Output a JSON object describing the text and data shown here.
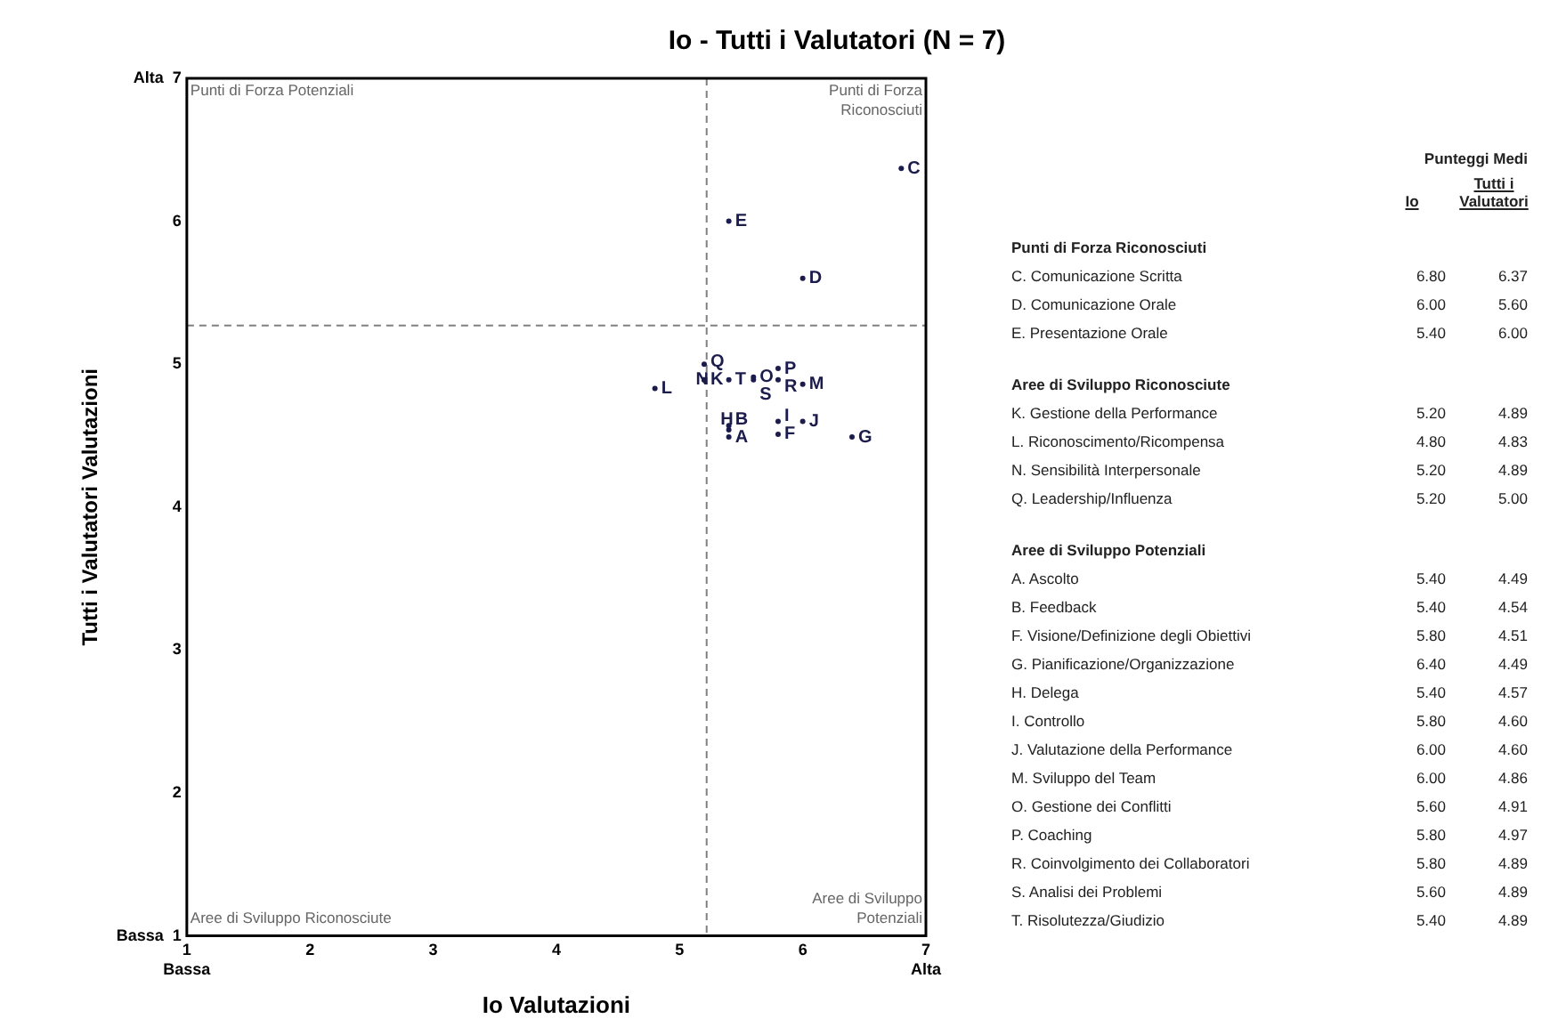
{
  "chart_data": [
    {
      "type": "scatter",
      "title": "Io - Tutti i Valutatori (N = 7)",
      "xlabel": "Io Valutazioni",
      "ylabel": "Tutti i Valutatori Valutazioni",
      "xlim": [
        1,
        7
      ],
      "xticks": [
        {
          "value": 1,
          "label": "1\nBassa"
        },
        2,
        3,
        4,
        5,
        6,
        {
          "value": 7,
          "label": "7\nAlta"
        }
      ],
      "ylim": [
        1,
        7
      ],
      "yticks": [
        {
          "value": 1,
          "label": "Bassa  1"
        },
        2,
        3,
        4,
        5,
        6,
        {
          "value": 7,
          "label": "Alta  7"
        }
      ],
      "grid": false,
      "legend": false,
      "marker": "circle",
      "ref_lines": [
        {
          "axis": "x",
          "value": 5.22,
          "color": "#808080",
          "line_style": "dashed"
        },
        {
          "axis": "y",
          "value": 5.27,
          "color": "#808080",
          "line_style": "dashed"
        }
      ],
      "annotations": [
        "Punti di Forza Potenziali",
        "Punti di Forza\nRiconosciuti",
        "Aree di Sviluppo Riconosciute",
        "Aree di Sviluppo\nPotenziali"
      ],
      "series": [
        {
          "color": "#1c1c4c",
          "x": [
            6.8,
            6.0,
            5.4,
            5.2,
            4.8,
            5.2,
            5.2,
            5.4,
            5.4,
            5.8,
            6.4,
            5.4,
            5.8,
            6.0,
            6.0,
            5.6,
            5.8,
            5.8,
            5.6,
            5.4
          ],
          "values": [
            6.37,
            5.6,
            6.0,
            4.89,
            4.83,
            4.89,
            5.0,
            4.49,
            4.54,
            4.51,
            4.49,
            4.57,
            4.6,
            4.6,
            4.86,
            4.91,
            4.97,
            4.89,
            4.89,
            4.89
          ],
          "value_labels": [
            "C",
            "D",
            "E",
            "K",
            "L",
            "N",
            "Q",
            "A",
            "B",
            "F",
            "G",
            "H",
            "I",
            "J",
            "M",
            "O",
            "P",
            "R",
            "S",
            "T"
          ]
        }
      ]
    },
    {
      "type": "other",
      "title": "Punteggi Medi",
      "categories": [
        "Io",
        "Tutti i Valutatori"
      ],
      "y_categories": [
        "Punti di Forza Riconosciuti",
        "C. Comunicazione Scritta",
        "D. Comunicazione Orale",
        "E. Presentazione Orale",
        "Aree di Sviluppo Riconosciute",
        "K. Gestione della Performance",
        "L. Riconoscimento/Ricompensa",
        "N. Sensibilità Interpersonale",
        "Q. Leadership/Influenza",
        "Aree di Sviluppo Potenziali",
        "A. Ascolto",
        "B. Feedback",
        "F. Visione/Definizione degli Obiettivi",
        "G. Pianificazione/Organizzazione",
        "H. Delega",
        "I. Controllo",
        "J. Valutazione della Performance",
        "M. Sviluppo del Team",
        "O. Gestione dei Conflitti",
        "P. Coaching",
        "R. Coinvolgimento dei Collaboratori",
        "S. Analisi dei Problemi",
        "T. Risolutezza/Giudizio"
      ],
      "cell_labels": [
        [
          null,
          null
        ],
        [
          "6.80",
          "6.37"
        ],
        [
          "6.00",
          "5.60"
        ],
        [
          "5.40",
          "6.00"
        ],
        [
          null,
          null
        ],
        [
          "5.20",
          "4.89"
        ],
        [
          "4.80",
          "4.83"
        ],
        [
          "5.20",
          "4.89"
        ],
        [
          "5.20",
          "5.00"
        ],
        [
          null,
          null
        ],
        [
          "5.40",
          "4.49"
        ],
        [
          "5.40",
          "4.54"
        ],
        [
          "5.80",
          "4.51"
        ],
        [
          "6.40",
          "4.49"
        ],
        [
          "5.40",
          "4.57"
        ],
        [
          "5.80",
          "4.60"
        ],
        [
          "6.00",
          "4.60"
        ],
        [
          "6.00",
          "4.86"
        ],
        [
          "5.60",
          "4.91"
        ],
        [
          "5.80",
          "4.97"
        ],
        [
          "5.80",
          "4.89"
        ],
        [
          "5.60",
          "4.89"
        ],
        [
          "5.40",
          "4.89"
        ]
      ]
    }
  ]
}
